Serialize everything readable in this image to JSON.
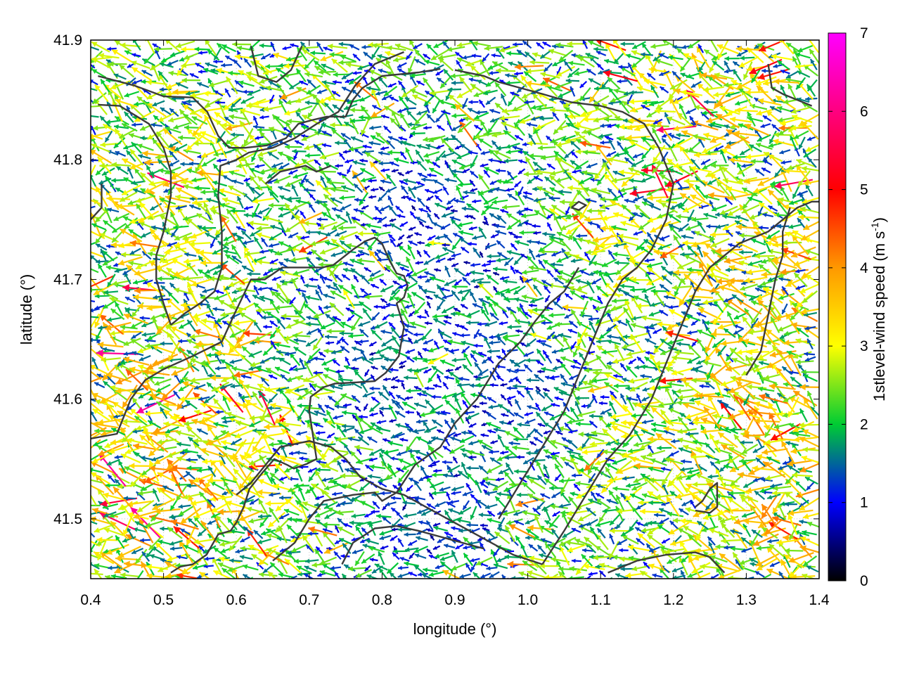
{
  "chart_data": {
    "type": "vector-field",
    "xlabel": "longitude (°)",
    "ylabel": "latitude (°)",
    "xlim": [
      0.4,
      1.4
    ],
    "ylim": [
      41.45,
      41.9
    ],
    "x_ticks": [
      0.4,
      0.5,
      0.6,
      0.7,
      0.8,
      0.9,
      1.0,
      1.1,
      1.2,
      1.3,
      1.4
    ],
    "x_tick_labels": [
      "0.4",
      "0.5",
      "0.6",
      "0.7",
      "0.8",
      "0.9",
      "1.0",
      "1.1",
      "1.2",
      "1.3",
      "1.4"
    ],
    "y_ticks": [
      41.5,
      41.6,
      41.7,
      41.8,
      41.9
    ],
    "y_tick_labels": [
      "41.5",
      "41.6",
      "41.7",
      "41.8",
      "41.9"
    ],
    "grid": true,
    "colorbar": {
      "label_main": "1stlevel-wind speed (m s",
      "label_sup": "-1",
      "label_end": ")",
      "range": [
        0,
        7
      ],
      "ticks": [
        0,
        1,
        2,
        3,
        4,
        5,
        6,
        7
      ],
      "tick_labels": [
        "0",
        "1",
        "2",
        "3",
        "4",
        "5",
        "6",
        "7"
      ],
      "stops": [
        "#000000",
        "#0000ff",
        "#00cc33",
        "#ffff00",
        "#ff9900",
        "#ff0000",
        "#ff00ff"
      ]
    },
    "vector_grid_spacing": {
      "dlon": 0.0125,
      "dlat": 0.0075
    },
    "speed_zones": [
      {
        "lon": 0.48,
        "lat": 41.78,
        "speed": 2.6
      },
      {
        "lon": 0.47,
        "lat": 41.62,
        "speed": 3.0
      },
      {
        "lon": 0.52,
        "lat": 41.52,
        "speed": 3.1
      },
      {
        "lon": 0.7,
        "lat": 41.87,
        "speed": 2.1
      },
      {
        "lon": 0.73,
        "lat": 41.74,
        "speed": 2.0
      },
      {
        "lon": 0.68,
        "lat": 41.58,
        "speed": 2.4
      },
      {
        "lon": 0.84,
        "lat": 41.76,
        "speed": 0.9
      },
      {
        "lon": 0.8,
        "lat": 41.62,
        "speed": 1.0
      },
      {
        "lon": 0.85,
        "lat": 41.5,
        "speed": 1.1
      },
      {
        "lon": 0.95,
        "lat": 41.72,
        "speed": 1.1
      },
      {
        "lon": 1.0,
        "lat": 41.6,
        "speed": 0.9
      },
      {
        "lon": 1.0,
        "lat": 41.84,
        "speed": 2.0
      },
      {
        "lon": 1.1,
        "lat": 41.74,
        "speed": 2.4
      },
      {
        "lon": 1.15,
        "lat": 41.57,
        "speed": 2.4
      },
      {
        "lon": 1.1,
        "lat": 41.48,
        "speed": 2.0
      },
      {
        "lon": 1.25,
        "lat": 41.84,
        "speed": 2.7
      },
      {
        "lon": 1.28,
        "lat": 41.7,
        "speed": 2.8
      },
      {
        "lon": 1.3,
        "lat": 41.58,
        "speed": 3.1
      },
      {
        "lon": 1.35,
        "lat": 41.5,
        "speed": 2.9
      }
    ],
    "contours": [
      [
        [
          0.4,
          41.567
        ],
        [
          0.436,
          41.571
        ],
        [
          0.455,
          41.6
        ],
        [
          0.475,
          41.616
        ],
        [
          0.5,
          41.625
        ],
        [
          0.54,
          41.636
        ],
        [
          0.58,
          41.648
        ],
        [
          0.598,
          41.672
        ],
        [
          0.62,
          41.7
        ],
        [
          0.639,
          41.7
        ],
        [
          0.663,
          41.71
        ],
        [
          0.685,
          41.71
        ],
        [
          0.718,
          41.71
        ],
        [
          0.733,
          41.712
        ],
        [
          0.76,
          41.725
        ],
        [
          0.777,
          41.732
        ],
        [
          0.79,
          41.735
        ],
        [
          0.8,
          41.73
        ],
        [
          0.81,
          41.716
        ],
        [
          0.82,
          41.705
        ],
        [
          0.83,
          41.703
        ],
        [
          0.835,
          41.695
        ],
        [
          0.83,
          41.685
        ],
        [
          0.82,
          41.68
        ],
        [
          0.825,
          41.67
        ],
        [
          0.83,
          41.66
        ],
        [
          0.823,
          41.636
        ],
        [
          0.805,
          41.622
        ],
        [
          0.79,
          41.615
        ],
        [
          0.765,
          41.614
        ],
        [
          0.735,
          41.613
        ],
        [
          0.72,
          41.61
        ],
        [
          0.702,
          41.602
        ],
        [
          0.7,
          41.59
        ],
        [
          0.705,
          41.57
        ],
        [
          0.71,
          41.55
        ],
        [
          0.697,
          41.546
        ],
        [
          0.679,
          41.542
        ],
        [
          0.67,
          41.545
        ],
        [
          0.652,
          41.55
        ],
        [
          0.635,
          41.538
        ],
        [
          0.618,
          41.525
        ],
        [
          0.61,
          41.51
        ],
        [
          0.6,
          41.497
        ],
        [
          0.592,
          41.49
        ],
        [
          0.575,
          41.487
        ],
        [
          0.559,
          41.47
        ],
        [
          0.54,
          41.462
        ],
        [
          0.523,
          41.46
        ],
        [
          0.51,
          41.455
        ]
      ],
      [
        [
          0.41,
          41.87
        ],
        [
          0.46,
          41.862
        ],
        [
          0.5,
          41.853
        ],
        [
          0.54,
          41.852
        ],
        [
          0.56,
          41.84
        ],
        [
          0.575,
          41.82
        ],
        [
          0.59,
          41.81
        ],
        [
          0.612,
          41.81
        ],
        [
          0.642,
          41.812
        ],
        [
          0.668,
          41.818
        ],
        [
          0.685,
          41.83
        ],
        [
          0.703,
          41.833
        ],
        [
          0.724,
          41.836
        ],
        [
          0.75,
          41.836
        ],
        [
          0.76,
          41.85
        ],
        [
          0.773,
          41.86
        ],
        [
          0.8,
          41.87
        ],
        [
          0.85,
          41.873
        ],
        [
          0.88,
          41.876
        ]
      ],
      [
        [
          0.41,
          41.846
        ],
        [
          0.44,
          41.845
        ],
        [
          0.48,
          41.83
        ],
        [
          0.5,
          41.81
        ],
        [
          0.51,
          41.79
        ],
        [
          0.51,
          41.77
        ],
        [
          0.5,
          41.74
        ],
        [
          0.49,
          41.72
        ],
        [
          0.49,
          41.7
        ],
        [
          0.5,
          41.68
        ],
        [
          0.51,
          41.662
        ]
      ],
      [
        [
          0.51,
          41.662
        ],
        [
          0.53,
          41.672
        ],
        [
          0.55,
          41.68
        ],
        [
          0.57,
          41.69
        ],
        [
          0.58,
          41.71
        ],
        [
          0.58,
          41.74
        ],
        [
          0.575,
          41.77
        ],
        [
          0.578,
          41.795
        ],
        [
          0.6,
          41.8
        ],
        [
          0.617,
          41.806
        ],
        [
          0.65,
          41.81
        ],
        [
          0.68,
          41.818
        ],
        [
          0.71,
          41.83
        ],
        [
          0.74,
          41.84
        ],
        [
          0.763,
          41.862
        ],
        [
          0.79,
          41.88
        ],
        [
          0.83,
          41.89
        ]
      ],
      [
        [
          0.6,
          41.52
        ],
        [
          0.62,
          41.53
        ],
        [
          0.64,
          41.545
        ],
        [
          0.66,
          41.56
        ],
        [
          0.7,
          41.565
        ],
        [
          0.73,
          41.56
        ],
        [
          0.75,
          41.55
        ],
        [
          0.77,
          41.535
        ],
        [
          0.8,
          41.525
        ],
        [
          0.83,
          41.52
        ],
        [
          0.86,
          41.51
        ],
        [
          0.89,
          41.5
        ],
        [
          0.92,
          41.49
        ],
        [
          0.95,
          41.48
        ],
        [
          0.98,
          41.47
        ],
        [
          1.02,
          41.462
        ]
      ],
      [
        [
          0.65,
          41.465
        ],
        [
          0.68,
          41.48
        ],
        [
          0.7,
          41.5
        ],
        [
          0.72,
          41.515
        ],
        [
          0.76,
          41.52
        ],
        [
          0.79,
          41.522
        ],
        [
          0.8,
          41.515
        ],
        [
          0.82,
          41.522
        ],
        [
          0.845,
          41.545
        ],
        [
          0.88,
          41.56
        ],
        [
          0.9,
          41.58
        ],
        [
          0.93,
          41.6
        ],
        [
          0.96,
          41.63
        ],
        [
          0.99,
          41.648
        ],
        [
          1.01,
          41.665
        ],
        [
          1.03,
          41.68
        ],
        [
          1.05,
          41.69
        ],
        [
          1.06,
          41.7
        ],
        [
          1.07,
          41.71
        ]
      ],
      [
        [
          0.745,
          41.462
        ],
        [
          0.76,
          41.48
        ],
        [
          0.79,
          41.492
        ],
        [
          0.82,
          41.494
        ],
        [
          0.85,
          41.49
        ],
        [
          0.88,
          41.485
        ],
        [
          0.91,
          41.48
        ],
        [
          0.94,
          41.475
        ]
      ],
      [
        [
          0.64,
          41.78
        ],
        [
          0.66,
          41.79
        ],
        [
          0.695,
          41.795
        ],
        [
          0.71,
          41.79
        ],
        [
          0.73,
          41.795
        ]
      ],
      [
        [
          0.96,
          41.5
        ],
        [
          0.99,
          41.53
        ],
        [
          1.02,
          41.56
        ],
        [
          1.05,
          41.59
        ],
        [
          1.07,
          41.62
        ],
        [
          1.09,
          41.65
        ],
        [
          1.11,
          41.68
        ],
        [
          1.13,
          41.7
        ],
        [
          1.15,
          41.71
        ],
        [
          1.17,
          41.725
        ],
        [
          1.19,
          41.75
        ],
        [
          1.2,
          41.78
        ],
        [
          1.18,
          41.81
        ],
        [
          1.16,
          41.83
        ],
        [
          1.13,
          41.84
        ],
        [
          1.1,
          41.845
        ],
        [
          1.06,
          41.848
        ],
        [
          1.02,
          41.855
        ],
        [
          0.99,
          41.86
        ],
        [
          0.96,
          41.865
        ],
        [
          0.94,
          41.87
        ],
        [
          0.9,
          41.875
        ]
      ],
      [
        [
          1.02,
          41.462
        ],
        [
          1.05,
          41.49
        ],
        [
          1.08,
          41.52
        ],
        [
          1.11,
          41.55
        ],
        [
          1.14,
          41.57
        ],
        [
          1.17,
          41.6
        ],
        [
          1.19,
          41.63
        ],
        [
          1.21,
          41.66
        ],
        [
          1.23,
          41.69
        ],
        [
          1.25,
          41.71
        ],
        [
          1.27,
          41.72
        ],
        [
          1.29,
          41.73
        ],
        [
          1.31,
          41.735
        ],
        [
          1.33,
          41.74
        ],
        [
          1.35,
          41.75
        ],
        [
          1.37,
          41.76
        ],
        [
          1.39,
          41.765
        ],
        [
          1.4,
          41.765
        ]
      ],
      [
        [
          1.3,
          41.62
        ],
        [
          1.32,
          41.64
        ],
        [
          1.33,
          41.67
        ],
        [
          1.34,
          41.7
        ],
        [
          1.35,
          41.72
        ],
        [
          1.35,
          41.74
        ],
        [
          1.36,
          41.76
        ]
      ],
      [
        [
          1.11,
          41.455
        ],
        [
          1.15,
          41.465
        ],
        [
          1.19,
          41.47
        ],
        [
          1.23,
          41.472
        ],
        [
          1.25,
          41.468
        ],
        [
          1.27,
          41.455
        ]
      ],
      [
        [
          1.23,
          41.51
        ],
        [
          1.24,
          41.515
        ],
        [
          1.25,
          41.525
        ],
        [
          1.26,
          41.53
        ],
        [
          1.26,
          41.51
        ],
        [
          1.25,
          41.505
        ],
        [
          1.23,
          41.507
        ]
      ],
      [
        [
          1.06,
          41.76
        ],
        [
          1.07,
          41.765
        ],
        [
          1.08,
          41.762
        ],
        [
          1.07,
          41.758
        ],
        [
          1.06,
          41.76
        ]
      ],
      [
        [
          1.33,
          41.88
        ],
        [
          1.335,
          41.86
        ],
        [
          1.35,
          41.855
        ],
        [
          1.37,
          41.85
        ],
        [
          1.39,
          41.845
        ]
      ],
      [
        [
          0.62,
          41.895
        ],
        [
          0.63,
          41.87
        ],
        [
          0.655,
          41.865
        ],
        [
          0.675,
          41.875
        ],
        [
          0.69,
          41.895
        ]
      ],
      [
        [
          0.4,
          41.75
        ],
        [
          0.415,
          41.76
        ],
        [
          0.415,
          41.78
        ]
      ]
    ]
  }
}
